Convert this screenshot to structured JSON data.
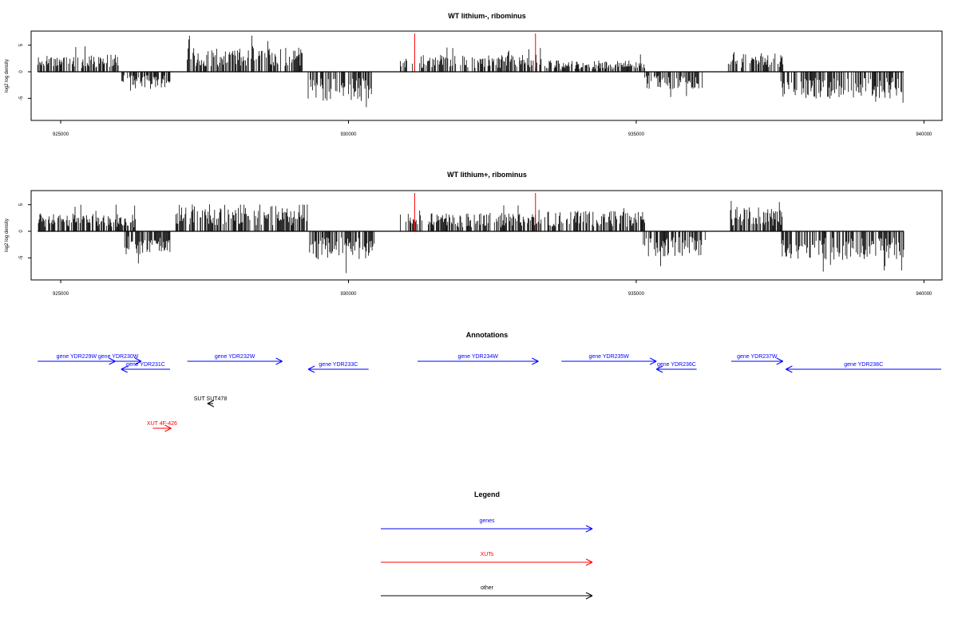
{
  "chart_data": [
    {
      "type": "bar",
      "title": "WT lithium-, ribominus",
      "ylabel": "log2 log density",
      "xlim": [
        924500,
        940300
      ],
      "ylim": [
        -9,
        7.5
      ],
      "x_ticks": [
        925000,
        930000,
        935000,
        940000
      ],
      "y_ticks": [
        -5,
        0,
        5
      ],
      "vertical_markers": [
        931150,
        933250
      ],
      "segments": [
        {
          "start": 924600,
          "end": 926000,
          "sign": 1,
          "amp": 2.8
        },
        {
          "start": 926050,
          "end": 926900,
          "sign": -1,
          "amp": 2.6
        },
        {
          "start": 927200,
          "end": 929200,
          "sign": 1,
          "amp": 4.0
        },
        {
          "start": 929300,
          "end": 930400,
          "sign": -1,
          "amp": 4.8
        },
        {
          "start": 930900,
          "end": 933350,
          "sign": 1,
          "amp": 2.8
        },
        {
          "start": 933400,
          "end": 935150,
          "sign": 1,
          "amp": 1.9
        },
        {
          "start": 935150,
          "end": 936150,
          "sign": -1,
          "amp": 2.8
        },
        {
          "start": 936600,
          "end": 937550,
          "sign": 1,
          "amp": 3.0
        },
        {
          "start": 937500,
          "end": 939650,
          "sign": -1,
          "amp": 4.4
        }
      ]
    },
    {
      "type": "bar",
      "title": "WT lithium+, ribominus",
      "ylabel": "log2 log density",
      "xlim": [
        924500,
        940300
      ],
      "ylim": [
        -9,
        7.5
      ],
      "x_ticks": [
        925000,
        930000,
        935000,
        940000
      ],
      "y_ticks": [
        -5,
        0,
        5
      ],
      "vertical_markers": [
        931150,
        933250
      ],
      "segments": [
        {
          "start": 924600,
          "end": 926300,
          "sign": 1,
          "amp": 3.0
        },
        {
          "start": 926100,
          "end": 926900,
          "sign": -1,
          "amp": 3.8
        },
        {
          "start": 927000,
          "end": 929300,
          "sign": 1,
          "amp": 4.4
        },
        {
          "start": 929300,
          "end": 930450,
          "sign": -1,
          "amp": 4.6
        },
        {
          "start": 930900,
          "end": 933350,
          "sign": 1,
          "amp": 3.0
        },
        {
          "start": 933400,
          "end": 935150,
          "sign": 1,
          "amp": 3.4
        },
        {
          "start": 935100,
          "end": 936200,
          "sign": -1,
          "amp": 4.2
        },
        {
          "start": 936600,
          "end": 937550,
          "sign": 1,
          "amp": 4.0
        },
        {
          "start": 937500,
          "end": 939650,
          "sign": -1,
          "amp": 4.8
        }
      ]
    }
  ],
  "annotations": {
    "title": "Annotations",
    "xlim": [
      924500,
      940300
    ],
    "features": [
      {
        "label": "gene YDR229W",
        "start": 924600,
        "end": 925950,
        "strand": "+",
        "row": 0,
        "color": "#0000ff"
      },
      {
        "label": "gene YDR230W",
        "start": 925600,
        "end": 926400,
        "strand": "+",
        "row": 0,
        "color": "#0000ff"
      },
      {
        "label": "gene YDR231C",
        "start": 926050,
        "end": 926900,
        "strand": "-",
        "row": 1,
        "color": "#0000ff"
      },
      {
        "label": "gene YDR232W",
        "start": 927200,
        "end": 928850,
        "strand": "+",
        "row": 0,
        "color": "#0000ff"
      },
      {
        "label": "gene YDR233C",
        "start": 929300,
        "end": 930350,
        "strand": "-",
        "row": 1,
        "color": "#0000ff"
      },
      {
        "label": "gene YDR234W",
        "start": 931200,
        "end": 933300,
        "strand": "+",
        "row": 0,
        "color": "#0000ff"
      },
      {
        "label": "gene YDR235W",
        "start": 933700,
        "end": 935350,
        "strand": "+",
        "row": 0,
        "color": "#0000ff"
      },
      {
        "label": "gene YDR236C",
        "start": 935350,
        "end": 936050,
        "strand": "-",
        "row": 1,
        "color": "#0000ff"
      },
      {
        "label": "gene YDR237W",
        "start": 936650,
        "end": 937550,
        "strand": "+",
        "row": 0,
        "color": "#0000ff"
      },
      {
        "label": "gene YDR238C",
        "start": 937600,
        "end": 940300,
        "strand": "-",
        "row": 1,
        "color": "#0000ff"
      },
      {
        "label": "SUT SUT478",
        "start": 927550,
        "end": 927650,
        "strand": "-",
        "row": 2,
        "color": "#000000"
      },
      {
        "label": "XUT 4F-426",
        "start": 926600,
        "end": 926920,
        "strand": "+",
        "row": 3,
        "color": "#ff0000"
      }
    ]
  },
  "legend": {
    "title": "Legend",
    "items": [
      {
        "label": "genes",
        "color": "#0000ff"
      },
      {
        "label": "XUTs",
        "color": "#ff0000"
      },
      {
        "label": "other",
        "color": "#000000"
      }
    ]
  }
}
